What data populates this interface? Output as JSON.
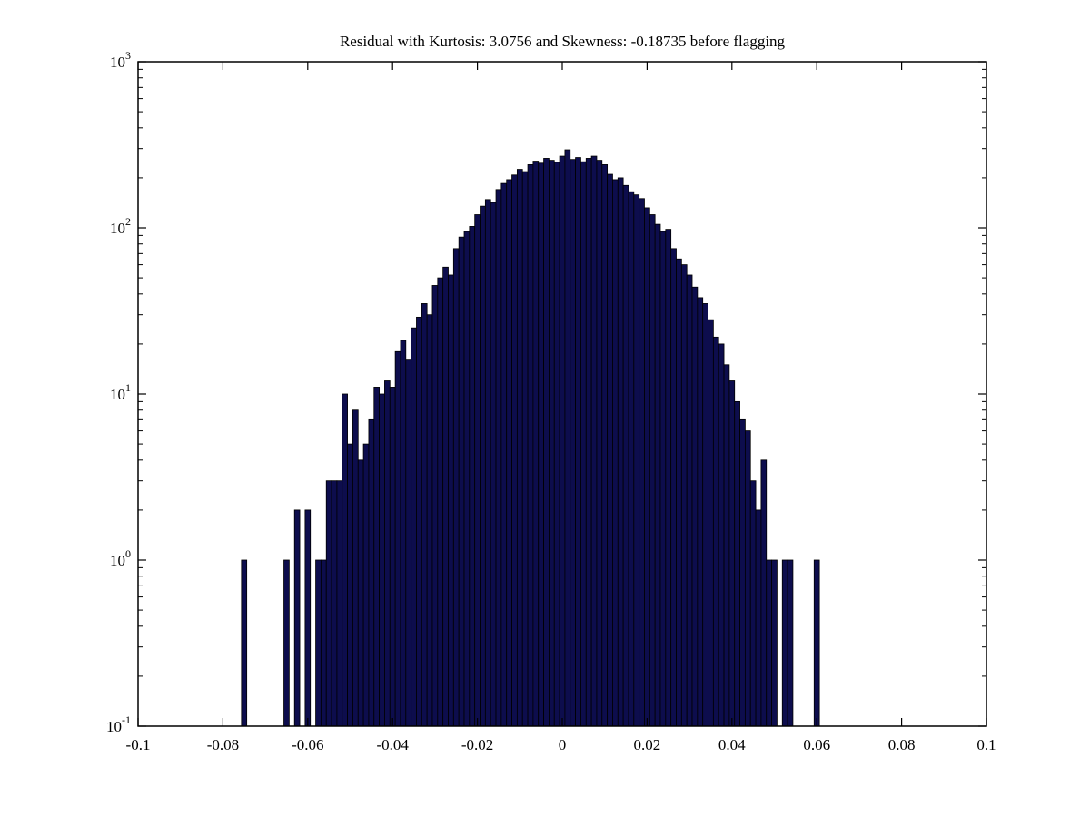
{
  "page": {
    "background": "#ffffff"
  },
  "chart_data": {
    "type": "bar",
    "subtype": "histogram",
    "title": "Residual with Kurtosis: 3.0756 and Skewness: -0.18735 before flagging",
    "kurtosis": "3.0756",
    "skewness": "-0.18735",
    "xlabel": "",
    "ylabel": "",
    "xlim": [
      -0.1,
      0.1
    ],
    "ylim": [
      0.1,
      1000
    ],
    "y_scale": "log",
    "grid": false,
    "legend": null,
    "bar_fill": "#0d0d4d",
    "bar_edge": "#000000",
    "axis_color": "#000000",
    "x_ticks": [
      -0.1,
      -0.08,
      -0.06,
      -0.04,
      -0.02,
      0,
      0.02,
      0.04,
      0.06,
      0.08,
      0.1
    ],
    "x_tick_labels": [
      "-0.1",
      "-0.08",
      "-0.06",
      "-0.04",
      "-0.02",
      "0",
      "0.02",
      "0.04",
      "0.06",
      "0.08",
      "0.1"
    ],
    "y_ticks": [
      {
        "value": 1000,
        "base": "10",
        "exp": "3"
      },
      {
        "value": 100,
        "base": "10",
        "exp": "2"
      },
      {
        "value": 10,
        "base": "10",
        "exp": "1"
      },
      {
        "value": 1,
        "base": "10",
        "exp": "0"
      },
      {
        "value": 0.1,
        "base": "10",
        "exp": "-1"
      }
    ],
    "bins": {
      "start_center": -0.075,
      "width": 0.00125,
      "counts": [
        1,
        0,
        0,
        0,
        0,
        0,
        0,
        0,
        1,
        0,
        2,
        0,
        2,
        0,
        1,
        1,
        3,
        3,
        3,
        10,
        5,
        8,
        4,
        5,
        7,
        11,
        10,
        12,
        11,
        18,
        21,
        16,
        25,
        29,
        35,
        30,
        45,
        50,
        58,
        52,
        75,
        88,
        95,
        102,
        120,
        135,
        148,
        142,
        170,
        185,
        195,
        208,
        225,
        218,
        240,
        252,
        245,
        262,
        255,
        248,
        270,
        295,
        258,
        265,
        250,
        262,
        270,
        255,
        240,
        210,
        195,
        200,
        180,
        165,
        158,
        150,
        132,
        120,
        105,
        95,
        98,
        75,
        65,
        60,
        52,
        44,
        38,
        35,
        28,
        22,
        20,
        15,
        12,
        9,
        7,
        6,
        3,
        2,
        4,
        1,
        1,
        0,
        1,
        1,
        0,
        0,
        0,
        0,
        1
      ]
    }
  }
}
